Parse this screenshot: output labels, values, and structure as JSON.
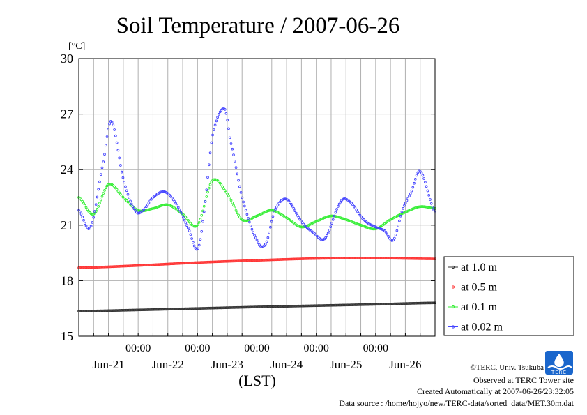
{
  "chart_data": {
    "type": "line",
    "title": "Soil Temperature / 2007-06-26",
    "ylabel": "[°C]",
    "xlabel": "(LST)",
    "ylim": [
      15,
      30
    ],
    "yticks": [
      15,
      18,
      21,
      24,
      27,
      30
    ],
    "xlim": [
      0,
      6
    ],
    "x_unit": "days from 2007-06-20 12:00 LST",
    "x_time_ticks": [
      "00:00",
      "00:00",
      "00:00",
      "00:00",
      "00:00"
    ],
    "x_date_labels": [
      "Jun-21",
      "Jun-22",
      "Jun-23",
      "Jun-24",
      "Jun-25",
      "Jun-26"
    ],
    "legend_position": "right",
    "series": [
      {
        "name": "at 1.0 m",
        "color": "#333333",
        "x": [
          0,
          1,
          2,
          3,
          4,
          5,
          6
        ],
        "y": [
          16.35,
          16.42,
          16.5,
          16.58,
          16.65,
          16.72,
          16.8
        ]
      },
      {
        "name": "at 0.5 m",
        "color": "#ff3333",
        "x": [
          0,
          1,
          2,
          3,
          4,
          5,
          6
        ],
        "y": [
          18.7,
          18.82,
          18.98,
          19.1,
          19.2,
          19.22,
          19.18
        ]
      },
      {
        "name": "at 0.1 m",
        "color": "#33ee33",
        "x": [
          0,
          0.25,
          0.5,
          0.75,
          1.0,
          1.25,
          1.5,
          1.75,
          2.0,
          2.25,
          2.5,
          2.75,
          3.0,
          3.25,
          3.5,
          3.75,
          4.0,
          4.25,
          4.5,
          4.75,
          5.0,
          5.25,
          5.5,
          5.75,
          6.0
        ],
        "y": [
          22.5,
          21.6,
          23.2,
          22.5,
          21.8,
          21.9,
          22.1,
          21.6,
          21.0,
          23.4,
          22.7,
          21.3,
          21.5,
          21.8,
          21.4,
          20.9,
          21.2,
          21.5,
          21.3,
          21.0,
          20.8,
          21.3,
          21.7,
          22.0,
          21.9
        ]
      },
      {
        "name": "at 0.02 m",
        "color": "#4444ff",
        "x": [
          0,
          0.2,
          0.42,
          0.55,
          0.75,
          0.95,
          1.08,
          1.25,
          1.45,
          1.65,
          1.85,
          2.0,
          2.1,
          2.25,
          2.45,
          2.55,
          2.75,
          3.0,
          3.15,
          3.3,
          3.5,
          3.75,
          3.95,
          4.15,
          4.4,
          4.55,
          4.8,
          5.0,
          5.15,
          5.3,
          5.45,
          5.6,
          5.75,
          6.0
        ],
        "y": [
          21.8,
          20.9,
          24.5,
          26.6,
          23.5,
          21.8,
          21.8,
          22.5,
          22.8,
          22.1,
          20.8,
          19.7,
          21.5,
          25.8,
          27.3,
          25.6,
          22.5,
          20.2,
          20.0,
          21.8,
          22.4,
          21.2,
          20.6,
          20.3,
          22.2,
          22.3,
          21.3,
          20.9,
          20.7,
          20.2,
          21.8,
          22.8,
          23.9,
          21.7
        ]
      }
    ]
  },
  "footer": {
    "credit": "©TERC, Univ. Tsukuba",
    "observed": "Observed at TERC Tower site",
    "created": "Created Automatically at 2007-06-26/23:32:05",
    "source": "Data source : /home/hojyo/new/TERC-data/sorted_data/MET.30m.dat",
    "logo_text": "TERC"
  }
}
